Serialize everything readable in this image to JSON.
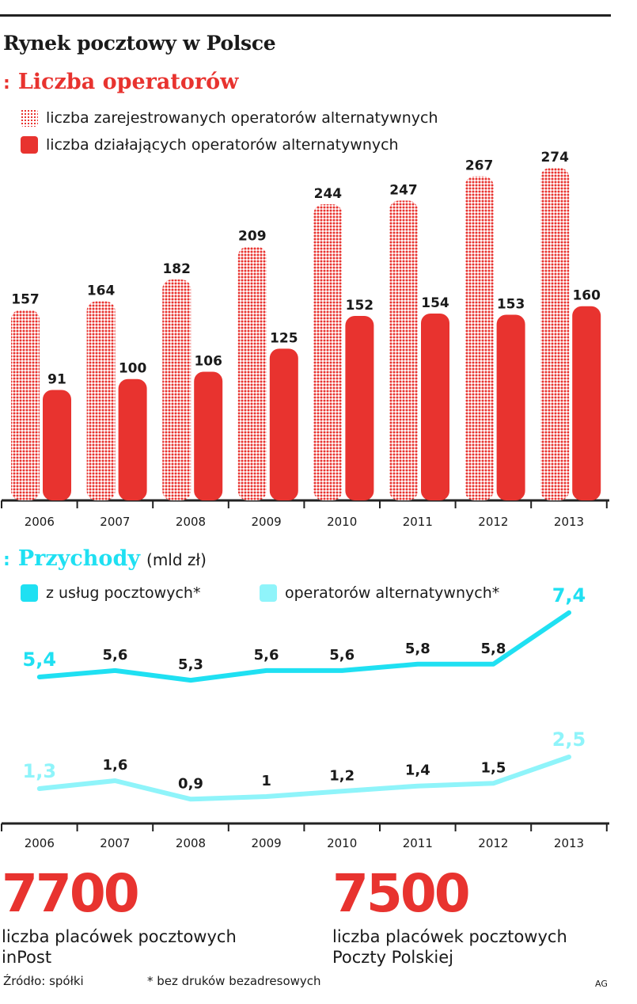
{
  "header": {
    "title": "Rynek pocztowy w Polsce"
  },
  "section1": {
    "marker": ":",
    "title": "Liczba operatorów",
    "legend": [
      "liczba zarejestrowanych operatorów alternatywnych",
      "liczba działających operatorów alternatywnych"
    ]
  },
  "section2": {
    "marker": ":",
    "title": "Przychody",
    "unit": "(mld zł)",
    "legend": [
      "z usług pocztowych*",
      "operatorów alternatywnych*"
    ]
  },
  "colors": {
    "red": "#e8332f",
    "cyan": "#1fe0f2",
    "lightcyan": "#8ff4fa",
    "axis": "#222222"
  },
  "chart_data": [
    {
      "type": "bar",
      "categories": [
        "2006",
        "2007",
        "2008",
        "2009",
        "2010",
        "2011",
        "2012",
        "2013"
      ],
      "series": [
        {
          "name": "liczba zarejestrowanych operatorów alternatywnych",
          "values": [
            157,
            164,
            182,
            209,
            244,
            247,
            267,
            274
          ]
        },
        {
          "name": "liczba działających operatorów alternatywnych",
          "values": [
            91,
            100,
            106,
            125,
            152,
            154,
            153,
            160
          ]
        }
      ],
      "data_labels": true,
      "ylim": [
        0,
        274
      ]
    },
    {
      "type": "line",
      "categories": [
        "2006",
        "2007",
        "2008",
        "2009",
        "2010",
        "2011",
        "2012",
        "2013"
      ],
      "series": [
        {
          "name": "z usług pocztowych*",
          "values": [
            5.4,
            5.6,
            5.3,
            5.6,
            5.6,
            5.8,
            5.8,
            7.4
          ],
          "labels": [
            "5,4",
            "5,6",
            "5,3",
            "5,6",
            "5,6",
            "5,8",
            "5,8",
            "7,4"
          ]
        },
        {
          "name": "operatorów alternatywnych*",
          "values": [
            1.3,
            1.6,
            0.9,
            1,
            1.2,
            1.4,
            1.5,
            2.5
          ],
          "labels": [
            "1,3",
            "1,6",
            "0,9",
            "1",
            "1,2",
            "1,4",
            "1,5",
            "2,5"
          ]
        }
      ],
      "unit": "(mld zł)"
    }
  ],
  "stats": [
    {
      "number": "7700",
      "caption_line1": "liczba placówek pocztowych",
      "caption_line2": "inPost"
    },
    {
      "number": "7500",
      "caption_line1": "liczba placówek pocztowych",
      "caption_line2": "Poczty Polskiej"
    }
  ],
  "footer": {
    "source": "Źródło: spółki",
    "note": "* bez druków bezadresowych",
    "credit": "AG"
  }
}
